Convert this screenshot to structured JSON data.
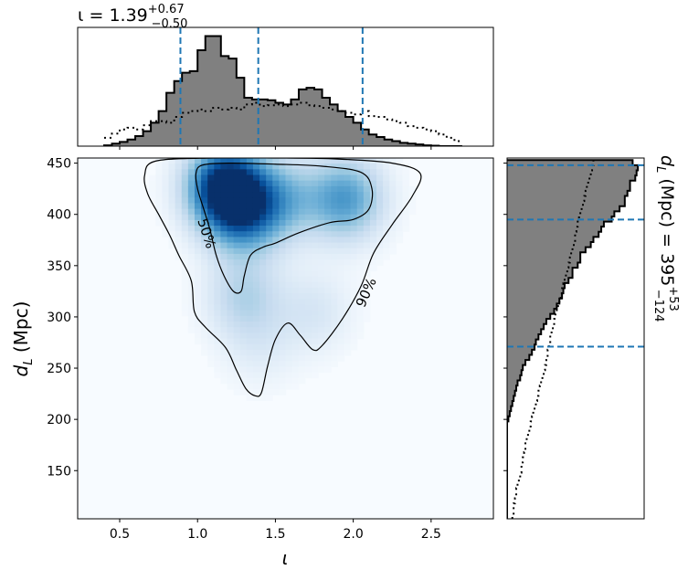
{
  "chart_data": [
    {
      "type": "histogram",
      "panel": "top marginal",
      "title": {
        "symbol": "ι",
        "median": "1.39",
        "upper": "+0.67",
        "lower": "−0.50"
      },
      "xlim": [
        0.23,
        2.9
      ],
      "bins": [
        0.4,
        0.45,
        0.5,
        0.55,
        0.6,
        0.65,
        0.7,
        0.75,
        0.8,
        0.85,
        0.9,
        0.95,
        1.0,
        1.05,
        1.1,
        1.15,
        1.2,
        1.25,
        1.3,
        1.35,
        1.4,
        1.45,
        1.5,
        1.55,
        1.6,
        1.65,
        1.7,
        1.75,
        1.8,
        1.85,
        1.9,
        1.95,
        2.0,
        2.05,
        2.1,
        2.15,
        2.2,
        2.25,
        2.3,
        2.35,
        2.4,
        2.45,
        2.5,
        2.55,
        2.6,
        2.65,
        2.7
      ],
      "posterior_counts": [
        0.01,
        0.03,
        0.05,
        0.08,
        0.12,
        0.18,
        0.28,
        0.42,
        0.64,
        0.78,
        0.88,
        0.9,
        1.15,
        1.32,
        1.32,
        1.08,
        1.05,
        0.82,
        0.58,
        0.56,
        0.56,
        0.55,
        0.52,
        0.5,
        0.56,
        0.68,
        0.7,
        0.68,
        0.58,
        0.5,
        0.42,
        0.35,
        0.28,
        0.2,
        0.14,
        0.11,
        0.08,
        0.06,
        0.04,
        0.03,
        0.02,
        0.01,
        0.005,
        0.0,
        0.0,
        0.0
      ],
      "prior_counts": [
        0.1,
        0.15,
        0.2,
        0.22,
        0.2,
        0.25,
        0.3,
        0.3,
        0.28,
        0.35,
        0.4,
        0.42,
        0.44,
        0.42,
        0.46,
        0.44,
        0.46,
        0.44,
        0.5,
        0.52,
        0.48,
        0.49,
        0.5,
        0.48,
        0.5,
        0.52,
        0.49,
        0.48,
        0.46,
        0.44,
        0.42,
        0.4,
        0.38,
        0.42,
        0.36,
        0.35,
        0.32,
        0.3,
        0.28,
        0.24,
        0.22,
        0.2,
        0.18,
        0.14,
        0.1,
        0.06
      ],
      "quantile_lines": [
        0.89,
        1.39,
        2.06
      ]
    },
    {
      "type": "heatmap",
      "panel": "joint density",
      "xlabel": "ι",
      "ylabel": "dL (Mpc)",
      "xlim": [
        0.23,
        2.9
      ],
      "ylim": [
        103,
        455
      ],
      "xticks": [
        "0.5",
        "1.0",
        "1.5",
        "2.0",
        "2.5"
      ],
      "yticks": [
        "150",
        "200",
        "250",
        "300",
        "350",
        "400",
        "450"
      ],
      "colormap": "Blues",
      "density_peaks": [
        {
          "x": 1.18,
          "y": 427,
          "strength": 1.0
        },
        {
          "x": 1.3,
          "y": 400,
          "strength": 0.55
        },
        {
          "x": 1.95,
          "y": 415,
          "strength": 0.55
        },
        {
          "x": 1.55,
          "y": 415,
          "strength": 0.35
        },
        {
          "x": 1.3,
          "y": 320,
          "strength": 0.28
        },
        {
          "x": 1.75,
          "y": 305,
          "strength": 0.15
        },
        {
          "x": 1.4,
          "y": 270,
          "strength": 0.1
        }
      ],
      "contours": [
        {
          "label": "50%",
          "points": [
            [
              1.03,
              448
            ],
            [
              1.2,
              450
            ],
            [
              1.5,
              449
            ],
            [
              1.8,
              447
            ],
            [
              2.05,
              441
            ],
            [
              2.12,
              425
            ],
            [
              2.1,
              405
            ],
            [
              2.0,
              395
            ],
            [
              1.85,
              392
            ],
            [
              1.65,
              382
            ],
            [
              1.5,
              372
            ],
            [
              1.42,
              368
            ],
            [
              1.34,
              360
            ],
            [
              1.3,
              340
            ],
            [
              1.28,
              325
            ],
            [
              1.23,
              325
            ],
            [
              1.17,
              340
            ],
            [
              1.12,
              360
            ],
            [
              1.08,
              385
            ],
            [
              1.04,
              405
            ],
            [
              1.0,
              425
            ],
            [
              0.99,
              440
            ]
          ]
        },
        {
          "label": "90%",
          "points": [
            [
              0.73,
              452
            ],
            [
              1.1,
              455
            ],
            [
              1.5,
              455
            ],
            [
              1.9,
              454
            ],
            [
              2.25,
              450
            ],
            [
              2.43,
              440
            ],
            [
              2.38,
              418
            ],
            [
              2.25,
              390
            ],
            [
              2.13,
              362
            ],
            [
              2.05,
              330
            ],
            [
              1.93,
              298
            ],
            [
              1.8,
              272
            ],
            [
              1.74,
              268
            ],
            [
              1.66,
              282
            ],
            [
              1.58,
              294
            ],
            [
              1.5,
              278
            ],
            [
              1.45,
              252
            ],
            [
              1.41,
              226
            ],
            [
              1.37,
              223
            ],
            [
              1.31,
              230
            ],
            [
              1.25,
              248
            ],
            [
              1.18,
              270
            ],
            [
              1.05,
              290
            ],
            [
              0.98,
              305
            ],
            [
              0.96,
              335
            ],
            [
              0.88,
              360
            ],
            [
              0.82,
              380
            ],
            [
              0.75,
              400
            ],
            [
              0.68,
              420
            ],
            [
              0.66,
              438
            ]
          ]
        }
      ]
    },
    {
      "type": "histogram",
      "panel": "right marginal",
      "orientation": "horizontal",
      "title": {
        "symbol": "dL (Mpc)",
        "median": "395",
        "upper": "+53",
        "lower": "−124"
      },
      "ylim": [
        103,
        455
      ],
      "bins": [
        103,
        108,
        113,
        118,
        123,
        128,
        133,
        138,
        143,
        148,
        153,
        158,
        163,
        168,
        173,
        178,
        183,
        188,
        193,
        198,
        203,
        208,
        213,
        218,
        223,
        228,
        233,
        238,
        243,
        248,
        253,
        258,
        263,
        268,
        273,
        278,
        283,
        288,
        293,
        298,
        303,
        308,
        313,
        318,
        323,
        328,
        333,
        338,
        343,
        348,
        353,
        358,
        363,
        368,
        373,
        378,
        383,
        388,
        393,
        398,
        403,
        408,
        413,
        418,
        423,
        428,
        433,
        438,
        443,
        448,
        453
      ],
      "posterior_counts": [
        0.0,
        0.0,
        0.0,
        0.0,
        0.0,
        0.0,
        0.0,
        0.0,
        0.0,
        0.0,
        0.0,
        0.0,
        0.0,
        0.0,
        0.0,
        0.0,
        0.0,
        0.0,
        0.0,
        0.01,
        0.02,
        0.03,
        0.04,
        0.05,
        0.06,
        0.07,
        0.08,
        0.1,
        0.11,
        0.12,
        0.14,
        0.17,
        0.19,
        0.21,
        0.22,
        0.24,
        0.26,
        0.28,
        0.3,
        0.33,
        0.36,
        0.38,
        0.4,
        0.42,
        0.43,
        0.44,
        0.47,
        0.5,
        0.5,
        0.54,
        0.56,
        0.56,
        0.6,
        0.64,
        0.66,
        0.7,
        0.72,
        0.74,
        0.8,
        0.82,
        0.86,
        0.9,
        0.9,
        0.92,
        0.94,
        0.94,
        0.98,
        0.99,
        1.0,
        0.96
      ],
      "prior_counts": [
        0.04,
        0.05,
        0.05,
        0.06,
        0.07,
        0.07,
        0.08,
        0.09,
        0.1,
        0.11,
        0.11,
        0.12,
        0.13,
        0.14,
        0.14,
        0.15,
        0.16,
        0.17,
        0.18,
        0.19,
        0.2,
        0.21,
        0.22,
        0.23,
        0.24,
        0.25,
        0.26,
        0.27,
        0.28,
        0.29,
        0.3,
        0.31,
        0.31,
        0.32,
        0.33,
        0.33,
        0.34,
        0.35,
        0.36,
        0.37,
        0.38,
        0.39,
        0.4,
        0.41,
        0.42,
        0.43,
        0.44,
        0.45,
        0.46,
        0.47,
        0.48,
        0.49,
        0.5,
        0.51,
        0.52,
        0.52,
        0.53,
        0.54,
        0.55,
        0.56,
        0.57,
        0.58,
        0.59,
        0.6,
        0.61,
        0.62,
        0.63,
        0.64,
        0.65,
        0.66
      ],
      "quantile_lines": [
        271,
        395,
        448
      ]
    }
  ],
  "colors": {
    "hist_fill": "#808080",
    "quantile": "#1f77b4",
    "contour": "#000000"
  }
}
